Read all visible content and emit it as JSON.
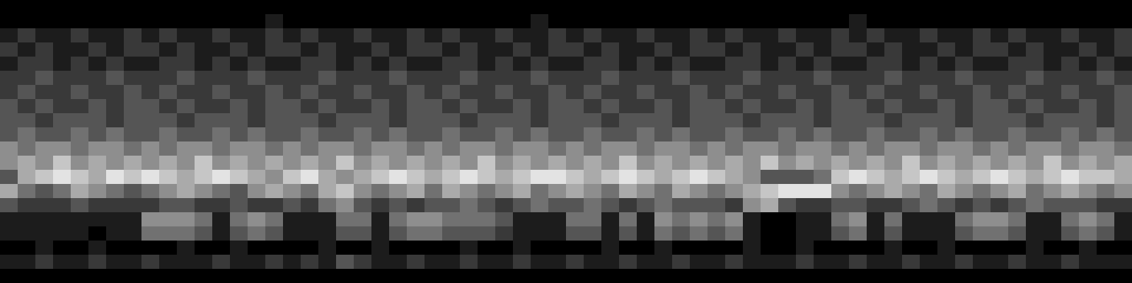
{
  "chart_data": {
    "type": "heatmap",
    "tick_labels": false,
    "color": "#ffffff",
    "color_range": [
      0,
      9
    ],
    "cells": [
      [
        0,
        0,
        0,
        0,
        0,
        0,
        0,
        0,
        0,
        0,
        0,
        0,
        0,
        0,
        0,
        0,
        0,
        0,
        0,
        0,
        0,
        0,
        0,
        0,
        0,
        0,
        0,
        0,
        0,
        0,
        0,
        0,
        0,
        0,
        0,
        0,
        0,
        0,
        0,
        0,
        0,
        0,
        0,
        0,
        0,
        0,
        0,
        0,
        0,
        0,
        0,
        0,
        0,
        0,
        0,
        0,
        0,
        0,
        0,
        0,
        0,
        0,
        0,
        0
      ],
      [
        0,
        0,
        0,
        0,
        0,
        0,
        0,
        0,
        0,
        0,
        0,
        0,
        0,
        0,
        0,
        1,
        0,
        0,
        0,
        0,
        0,
        0,
        0,
        0,
        0,
        0,
        0,
        0,
        0,
        0,
        1,
        0,
        0,
        0,
        0,
        0,
        0,
        0,
        0,
        0,
        0,
        0,
        0,
        0,
        0,
        0,
        0,
        0,
        1,
        0,
        0,
        0,
        0,
        0,
        0,
        0,
        0,
        0,
        0,
        0,
        0,
        0,
        0,
        0
      ],
      [
        1,
        2,
        1,
        1,
        2,
        1,
        1,
        2,
        1,
        2,
        1,
        1,
        2,
        1,
        1,
        2,
        1,
        2,
        1,
        1,
        2,
        1,
        1,
        2,
        1,
        2,
        1,
        1,
        2,
        1,
        1,
        2,
        1,
        2,
        1,
        1,
        2,
        1,
        1,
        2,
        1,
        2,
        1,
        1,
        2,
        1,
        1,
        2,
        1,
        2,
        1,
        1,
        2,
        1,
        1,
        2,
        1,
        2,
        1,
        1,
        2,
        1,
        1,
        2
      ],
      [
        2,
        1,
        2,
        1,
        1,
        2,
        1,
        2,
        2,
        1,
        2,
        1,
        1,
        2,
        1,
        2,
        2,
        1,
        2,
        1,
        1,
        2,
        1,
        2,
        2,
        1,
        2,
        1,
        1,
        2,
        1,
        2,
        2,
        1,
        2,
        1,
        1,
        2,
        1,
        2,
        2,
        1,
        2,
        1,
        1,
        2,
        1,
        2,
        2,
        1,
        2,
        1,
        1,
        2,
        1,
        2,
        2,
        1,
        2,
        1,
        1,
        2,
        1,
        2
      ],
      [
        1,
        2,
        2,
        1,
        2,
        1,
        2,
        1,
        1,
        2,
        2,
        1,
        2,
        1,
        2,
        1,
        1,
        2,
        2,
        1,
        2,
        1,
        2,
        1,
        1,
        2,
        2,
        1,
        2,
        1,
        2,
        1,
        1,
        2,
        2,
        1,
        2,
        1,
        2,
        1,
        1,
        2,
        2,
        1,
        2,
        1,
        2,
        1,
        1,
        2,
        2,
        1,
        2,
        1,
        2,
        1,
        1,
        2,
        2,
        1,
        2,
        1,
        2,
        1
      ],
      [
        2,
        2,
        3,
        2,
        2,
        2,
        3,
        2,
        2,
        2,
        3,
        2,
        2,
        2,
        3,
        2,
        2,
        2,
        3,
        2,
        2,
        2,
        3,
        2,
        2,
        2,
        3,
        2,
        2,
        2,
        3,
        2,
        2,
        2,
        3,
        2,
        2,
        2,
        3,
        2,
        2,
        2,
        3,
        2,
        2,
        2,
        3,
        2,
        2,
        2,
        3,
        2,
        2,
        2,
        3,
        2,
        2,
        2,
        3,
        2,
        2,
        2,
        3,
        2
      ],
      [
        2,
        3,
        2,
        2,
        3,
        2,
        2,
        3,
        2,
        3,
        2,
        2,
        3,
        2,
        2,
        3,
        2,
        3,
        2,
        2,
        3,
        2,
        2,
        3,
        2,
        3,
        2,
        2,
        3,
        2,
        2,
        3,
        2,
        3,
        2,
        2,
        3,
        2,
        2,
        3,
        2,
        3,
        2,
        2,
        3,
        2,
        2,
        3,
        2,
        3,
        2,
        2,
        3,
        2,
        2,
        3,
        2,
        3,
        2,
        2,
        3,
        2,
        2,
        3
      ],
      [
        3,
        2,
        3,
        2,
        2,
        3,
        2,
        3,
        3,
        2,
        3,
        2,
        2,
        3,
        2,
        3,
        3,
        2,
        3,
        2,
        2,
        3,
        2,
        3,
        3,
        2,
        3,
        2,
        2,
        3,
        2,
        3,
        3,
        2,
        3,
        2,
        2,
        3,
        2,
        3,
        3,
        2,
        3,
        2,
        2,
        3,
        2,
        3,
        3,
        2,
        3,
        2,
        2,
        3,
        2,
        3,
        3,
        2,
        3,
        2,
        2,
        3,
        2,
        3
      ],
      [
        3,
        3,
        2,
        3,
        3,
        3,
        2,
        3,
        3,
        3,
        2,
        3,
        3,
        3,
        2,
        3,
        3,
        3,
        2,
        3,
        3,
        3,
        2,
        3,
        3,
        3,
        2,
        3,
        3,
        3,
        2,
        3,
        3,
        3,
        2,
        3,
        3,
        3,
        2,
        3,
        3,
        3,
        2,
        3,
        3,
        3,
        2,
        3,
        3,
        3,
        2,
        3,
        3,
        3,
        2,
        3,
        3,
        3,
        2,
        3,
        3,
        3,
        2,
        3
      ],
      [
        3,
        4,
        3,
        3,
        4,
        3,
        4,
        3,
        3,
        4,
        3,
        3,
        4,
        3,
        4,
        3,
        3,
        4,
        3,
        3,
        4,
        3,
        4,
        3,
        3,
        4,
        3,
        3,
        4,
        3,
        4,
        3,
        3,
        4,
        3,
        3,
        4,
        3,
        4,
        3,
        3,
        4,
        3,
        3,
        4,
        3,
        4,
        3,
        3,
        4,
        3,
        3,
        4,
        3,
        4,
        3,
        3,
        4,
        3,
        3,
        4,
        3,
        4,
        3
      ],
      [
        5,
        4,
        5,
        5,
        4,
        5,
        5,
        4,
        5,
        4,
        5,
        5,
        4,
        5,
        5,
        4,
        5,
        4,
        5,
        5,
        4,
        5,
        5,
        4,
        5,
        4,
        5,
        5,
        4,
        5,
        5,
        4,
        5,
        4,
        5,
        5,
        4,
        5,
        5,
        4,
        5,
        4,
        5,
        5,
        4,
        5,
        5,
        4,
        5,
        4,
        5,
        5,
        4,
        5,
        5,
        4,
        5,
        4,
        5,
        5,
        4,
        5,
        5,
        4
      ],
      [
        5,
        6,
        5,
        7,
        5,
        6,
        5,
        6,
        5,
        6,
        5,
        7,
        5,
        6,
        5,
        6,
        5,
        6,
        5,
        7,
        5,
        6,
        5,
        6,
        5,
        6,
        5,
        7,
        5,
        6,
        5,
        6,
        5,
        6,
        5,
        7,
        5,
        6,
        5,
        6,
        5,
        6,
        5,
        7,
        5,
        6,
        5,
        6,
        5,
        6,
        5,
        7,
        5,
        6,
        5,
        6,
        5,
        6,
        5,
        7,
        5,
        6,
        5,
        6
      ],
      [
        3,
        6,
        7,
        8,
        7,
        6,
        8,
        7,
        8,
        7,
        6,
        7,
        8,
        7,
        6,
        5,
        7,
        8,
        6,
        5,
        6,
        7,
        8,
        7,
        6,
        7,
        8,
        7,
        6,
        7,
        8,
        8,
        7,
        6,
        7,
        8,
        7,
        6,
        7,
        8,
        7,
        6,
        5,
        3,
        3,
        3,
        4,
        7,
        8,
        7,
        6,
        7,
        8,
        7,
        6,
        7,
        8,
        7,
        6,
        7,
        8,
        7,
        7,
        6
      ],
      [
        6,
        4,
        3,
        4,
        6,
        5,
        4,
        3,
        4,
        5,
        6,
        5,
        4,
        3,
        5,
        6,
        5,
        4,
        6,
        7,
        5,
        4,
        5,
        6,
        4,
        6,
        5,
        4,
        5,
        6,
        4,
        5,
        6,
        5,
        4,
        6,
        5,
        4,
        6,
        5,
        4,
        5,
        6,
        7,
        8,
        8,
        8,
        5,
        4,
        5,
        6,
        5,
        4,
        6,
        5,
        4,
        5,
        6,
        4,
        5,
        6,
        5,
        4,
        5
      ],
      [
        3,
        2,
        2,
        2,
        3,
        2,
        2,
        2,
        2,
        3,
        3,
        2,
        2,
        3,
        2,
        2,
        3,
        2,
        4,
        5,
        3,
        2,
        3,
        2,
        3,
        3,
        4,
        3,
        2,
        3,
        4,
        3,
        3,
        4,
        3,
        2,
        3,
        4,
        3,
        3,
        3,
        2,
        5,
        6,
        3,
        2,
        2,
        3,
        3,
        2,
        2,
        3,
        4,
        3,
        2,
        3,
        2,
        3,
        4,
        3,
        3,
        3,
        2,
        2
      ],
      [
        1,
        1,
        1,
        1,
        1,
        1,
        1,
        1,
        5,
        5,
        5,
        4,
        1,
        4,
        5,
        4,
        1,
        1,
        1,
        4,
        4,
        1,
        4,
        5,
        5,
        4,
        4,
        4,
        3,
        1,
        1,
        1,
        4,
        4,
        1,
        4,
        1,
        5,
        4,
        5,
        4,
        5,
        1,
        0,
        0,
        1,
        1,
        4,
        5,
        1,
        4,
        1,
        1,
        1,
        4,
        5,
        5,
        4,
        1,
        1,
        4,
        5,
        4,
        1
      ],
      [
        1,
        1,
        1,
        1,
        1,
        0,
        1,
        1,
        4,
        4,
        4,
        3,
        1,
        3,
        4,
        3,
        1,
        1,
        1,
        3,
        3,
        1,
        3,
        4,
        4,
        3,
        3,
        3,
        2,
        1,
        1,
        1,
        3,
        3,
        1,
        3,
        1,
        4,
        3,
        4,
        3,
        4,
        1,
        0,
        0,
        1,
        1,
        3,
        4,
        1,
        3,
        1,
        1,
        1,
        3,
        4,
        4,
        3,
        1,
        1,
        3,
        4,
        3,
        1
      ],
      [
        0,
        0,
        1,
        0,
        0,
        1,
        0,
        0,
        0,
        0,
        1,
        0,
        0,
        1,
        0,
        0,
        0,
        0,
        1,
        0,
        0,
        1,
        0,
        0,
        0,
        0,
        1,
        0,
        0,
        1,
        0,
        0,
        0,
        0,
        1,
        0,
        0,
        1,
        0,
        0,
        0,
        0,
        1,
        0,
        0,
        1,
        0,
        0,
        0,
        0,
        1,
        0,
        0,
        1,
        0,
        0,
        0,
        0,
        1,
        0,
        0,
        1,
        0,
        0
      ],
      [
        1,
        1,
        2,
        1,
        1,
        2,
        1,
        1,
        2,
        1,
        1,
        1,
        2,
        1,
        1,
        2,
        1,
        2,
        1,
        3,
        2,
        1,
        1,
        2,
        1,
        1,
        2,
        1,
        1,
        2,
        1,
        1,
        2,
        1,
        1,
        2,
        1,
        1,
        2,
        1,
        1,
        2,
        1,
        1,
        1,
        2,
        1,
        1,
        2,
        1,
        1,
        2,
        1,
        1,
        2,
        1,
        1,
        2,
        1,
        1,
        2,
        1,
        1,
        1
      ],
      [
        0,
        0,
        0,
        0,
        0,
        0,
        0,
        0,
        0,
        0,
        0,
        0,
        0,
        0,
        0,
        0,
        0,
        0,
        0,
        0,
        0,
        0,
        0,
        0,
        0,
        0,
        0,
        0,
        0,
        0,
        0,
        0,
        0,
        0,
        0,
        0,
        0,
        0,
        0,
        0,
        0,
        0,
        0,
        0,
        0,
        0,
        0,
        0,
        0,
        0,
        0,
        0,
        0,
        0,
        0,
        0,
        0,
        0,
        0,
        0,
        0,
        0,
        0,
        0
      ]
    ]
  }
}
